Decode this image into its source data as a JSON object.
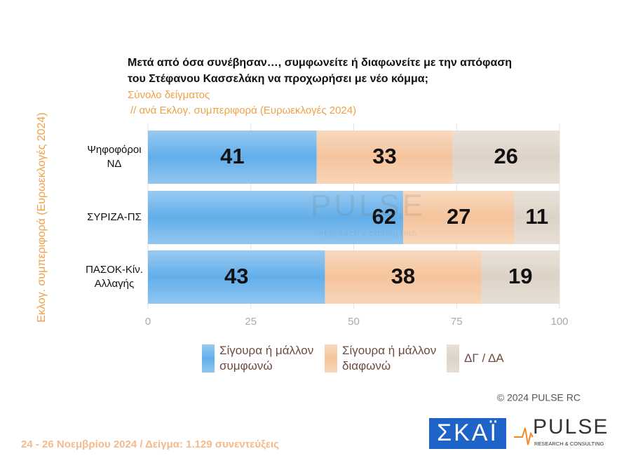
{
  "chart_data": {
    "type": "stacked-barh",
    "title": [
      "Μετά από όσα συνέβησαν…, συμφωνείτε ή διαφωνείτε με την απόφαση",
      "του Στέφανου Κασσελάκη να προχωρήσει με νέο κόμμα;"
    ],
    "subtitle": [
      "Σύνολο δείγματος",
      "// ανά Εκλογ. συμπεριφορά (Ευρωεκλογές 2024)"
    ],
    "y_label": "Εκλογ. συμπεριφορά (Ευρωεκλογές 2024)",
    "categories": [
      [
        "Ψηφοφόροι",
        "ΝΔ"
      ],
      [
        "ΣΥΡΙΖΑ-ΠΣ"
      ],
      [
        "ΠΑΣΟΚ-Κίν.",
        "Αλλαγής"
      ]
    ],
    "series": [
      {
        "name": "Σίγουρα ή μάλλον συμφωνώ",
        "color": "#62aeea",
        "values": [
          41,
          62,
          43
        ]
      },
      {
        "name": "Σίγουρα ή μάλλον διαφωνώ",
        "color": "#f5c49c",
        "values": [
          33,
          27,
          38
        ]
      },
      {
        "name": "ΔΓ / ΔΑ",
        "color": "#ddd2c6",
        "values": [
          26,
          11,
          19
        ]
      }
    ],
    "xlim": [
      0,
      100
    ],
    "xticks": [
      0,
      25,
      50,
      75,
      100
    ],
    "grid": true,
    "copyright": "© 2024 PULSE RC",
    "footer": "24 - 26 Νοεμβρίου 2024  /  Δείγμα:  1.129 συνεντεύξεις",
    "logos": {
      "skai": "ΣΚΑΪ",
      "pulse": "PULSE",
      "pulse_sub": "RESEARCH & CONSULTING"
    },
    "watermark": {
      "name": "PULSE",
      "sub": "RESEARCH & CONSULTING"
    }
  }
}
